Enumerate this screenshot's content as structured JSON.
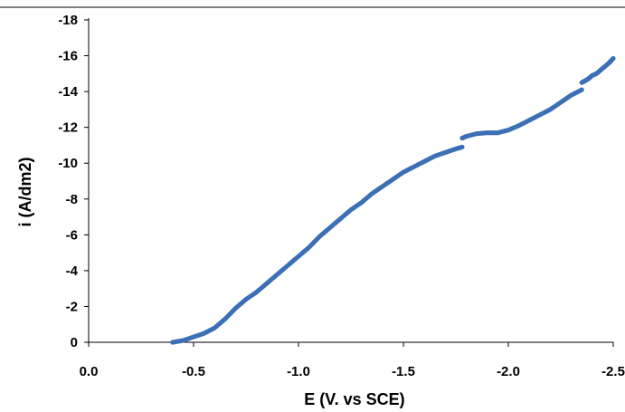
{
  "chart_data": {
    "type": "scatter",
    "xlabel": "E (V. vs SCE)",
    "ylabel": "i (A/dm2)",
    "xlim": [
      0.0,
      -2.5
    ],
    "ylim": [
      0,
      -18
    ],
    "x_ticks": [
      "0.0",
      "-0.5",
      "-1.0",
      "-1.5",
      "-2.0",
      "-2.5"
    ],
    "y_ticks": [
      "0",
      "-2",
      "-4",
      "-6",
      "-8",
      "-10",
      "-12",
      "-14",
      "-16",
      "-18"
    ],
    "x_tick_values": [
      0.0,
      -0.5,
      -1.0,
      -1.5,
      -2.0,
      -2.5
    ],
    "y_tick_values": [
      0,
      -2,
      -4,
      -6,
      -8,
      -10,
      -12,
      -14,
      -16,
      -18
    ],
    "grid": false,
    "legend": "none",
    "marker_color": "#3c6fb5",
    "series": [
      {
        "points": [
          [
            -0.4,
            0.0
          ],
          [
            -0.45,
            -0.1
          ],
          [
            -0.5,
            -0.3
          ],
          [
            -0.55,
            -0.5
          ],
          [
            -0.6,
            -0.8
          ],
          [
            -0.65,
            -1.3
          ],
          [
            -0.7,
            -1.9
          ],
          [
            -0.75,
            -2.4
          ],
          [
            -0.8,
            -2.8
          ],
          [
            -0.85,
            -3.3
          ],
          [
            -0.9,
            -3.8
          ],
          [
            -0.95,
            -4.3
          ],
          [
            -1.0,
            -4.8
          ],
          [
            -1.05,
            -5.3
          ],
          [
            -1.1,
            -5.9
          ],
          [
            -1.15,
            -6.4
          ],
          [
            -1.2,
            -6.9
          ],
          [
            -1.25,
            -7.4
          ],
          [
            -1.3,
            -7.8
          ],
          [
            -1.35,
            -8.3
          ],
          [
            -1.4,
            -8.7
          ],
          [
            -1.45,
            -9.1
          ],
          [
            -1.5,
            -9.5
          ],
          [
            -1.55,
            -9.8
          ],
          [
            -1.6,
            -10.1
          ],
          [
            -1.65,
            -10.4
          ],
          [
            -1.7,
            -10.6
          ],
          [
            -1.75,
            -10.8
          ],
          [
            -1.78,
            -10.9
          ],
          [
            -1.78,
            -11.4
          ],
          [
            -1.8,
            -11.5
          ],
          [
            -1.85,
            -11.65
          ],
          [
            -1.9,
            -11.7
          ],
          [
            -1.95,
            -11.7
          ],
          [
            -2.0,
            -11.85
          ],
          [
            -2.05,
            -12.1
          ],
          [
            -2.1,
            -12.4
          ],
          [
            -2.15,
            -12.7
          ],
          [
            -2.2,
            -13.0
          ],
          [
            -2.25,
            -13.4
          ],
          [
            -2.3,
            -13.8
          ],
          [
            -2.35,
            -14.1
          ],
          [
            -2.35,
            -14.5
          ],
          [
            -2.38,
            -14.7
          ],
          [
            -2.4,
            -14.9
          ],
          [
            -2.42,
            -15.0
          ],
          [
            -2.45,
            -15.3
          ],
          [
            -2.48,
            -15.6
          ],
          [
            -2.5,
            -15.85
          ]
        ]
      }
    ]
  }
}
